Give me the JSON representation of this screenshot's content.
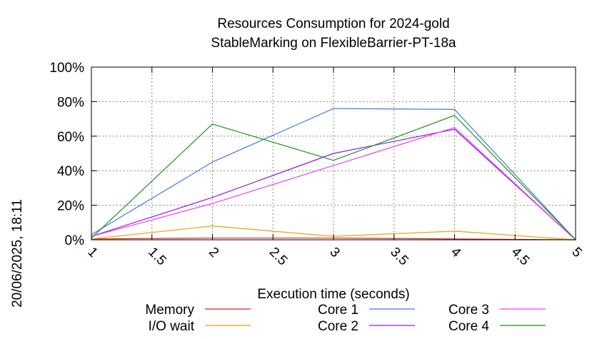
{
  "chart_data": {
    "type": "line",
    "title": "Resources Consumption for 2024-gold",
    "subtitle": "StableMarking on FlexibleBarrier-PT-18a",
    "xlabel": "Execution time (seconds)",
    "ylabel": "",
    "side_label": "20/06/2025, 18:11",
    "xlim": [
      1,
      5
    ],
    "ylim": [
      0,
      100
    ],
    "x_ticks": [
      "1",
      "1.5",
      "2",
      "2.5",
      "3",
      "3.5",
      "4",
      "4.5",
      "5"
    ],
    "y_ticks": [
      "0%",
      "20%",
      "40%",
      "60%",
      "80%",
      "100%"
    ],
    "grid": true,
    "legend_position": "bottom",
    "series": [
      {
        "name": "Memory",
        "color": "#e02020",
        "x": [
          1,
          2,
          3,
          4,
          5
        ],
        "y": [
          0.5,
          1,
          1,
          0.5,
          0
        ]
      },
      {
        "name": "I/O wait",
        "color": "#f0a000",
        "x": [
          1,
          2,
          3,
          4,
          5
        ],
        "y": [
          0.5,
          8,
          2,
          5,
          0
        ]
      },
      {
        "name": "Core 1",
        "color": "#4a78d8",
        "x": [
          1,
          2,
          3,
          4,
          5
        ],
        "y": [
          3,
          45,
          76,
          75.5,
          0
        ]
      },
      {
        "name": "Core 2",
        "color": "#9020e0",
        "x": [
          1,
          2,
          3,
          4,
          5
        ],
        "y": [
          2,
          24.5,
          50,
          64,
          0
        ]
      },
      {
        "name": "Core 3",
        "color": "#f040f0",
        "x": [
          1,
          2,
          3,
          4,
          5
        ],
        "y": [
          2,
          21,
          43,
          65,
          0
        ]
      },
      {
        "name": "Core 4",
        "color": "#209020",
        "x": [
          1,
          2,
          3,
          4,
          5
        ],
        "y": [
          1,
          67,
          46,
          72,
          0
        ]
      }
    ]
  }
}
